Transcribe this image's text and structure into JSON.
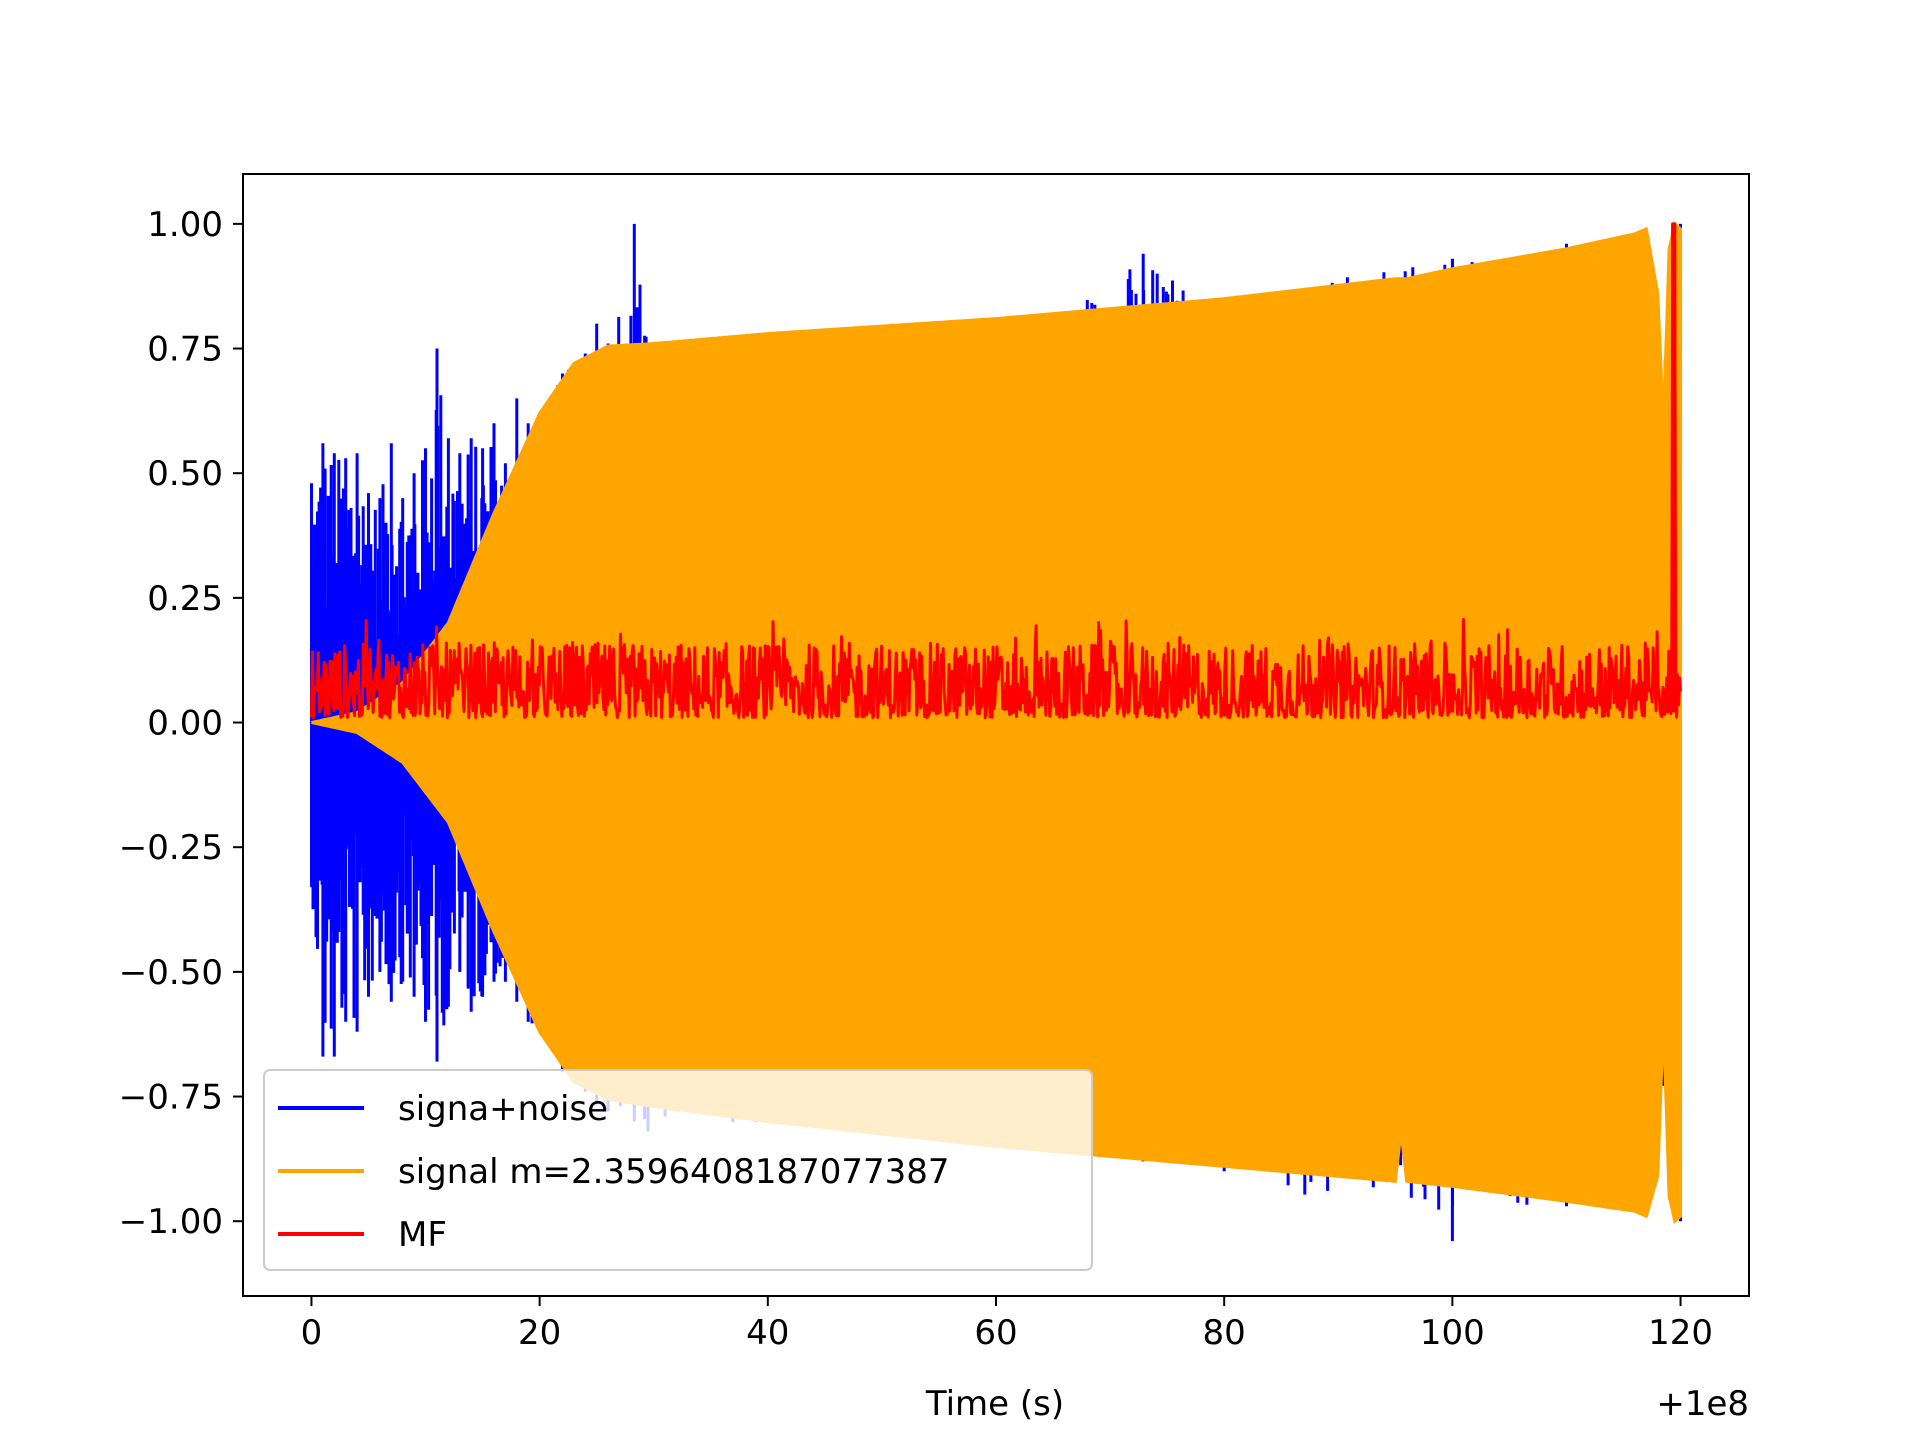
{
  "chart_data": {
    "type": "line",
    "title": "",
    "xlabel": "Time (s)",
    "ylabel": "",
    "x_offset_label": "+1e8",
    "xlim": [
      -6,
      126
    ],
    "ylim": [
      -1.15,
      1.1
    ],
    "xticks": [
      0,
      20,
      40,
      60,
      80,
      100,
      120
    ],
    "xtick_labels": [
      "0",
      "20",
      "40",
      "60",
      "80",
      "100",
      "120"
    ],
    "yticks": [
      1.0,
      0.75,
      0.5,
      0.25,
      0.0,
      -0.25,
      -0.5,
      -0.75,
      -1.0
    ],
    "ytick_labels": [
      "1.00",
      "0.75",
      "0.50",
      "0.25",
      "0.00",
      "−0.25",
      "−0.50",
      "−0.75",
      "−1.00"
    ],
    "grid": false,
    "legend_position": "lower-left",
    "series": [
      {
        "name": "signa+noise",
        "color": "#0000ff",
        "envelope": {
          "x": [
            0,
            1,
            2,
            3,
            4,
            5,
            6,
            7,
            8,
            9,
            10,
            11,
            12,
            13,
            14,
            15,
            16,
            17,
            18,
            19,
            20,
            22,
            24,
            25,
            26,
            28.3,
            29.5,
            31,
            60,
            72.9,
            80,
            100,
            100.01,
            110,
            120
          ],
          "upper": [
            0.48,
            0.56,
            0.54,
            0.53,
            0.54,
            0.46,
            0.45,
            0.56,
            0.45,
            0.5,
            0.55,
            0.75,
            0.57,
            0.54,
            0.57,
            0.55,
            0.6,
            0.52,
            0.65,
            0.6,
            0.62,
            0.7,
            0.74,
            0.8,
            0.76,
            1.0,
            0.76,
            0.76,
            0.8,
            0.94,
            0.85,
            0.93,
            0.93,
            0.96,
            1.0
          ],
          "lower": [
            -0.33,
            -0.67,
            -0.67,
            -0.6,
            -0.62,
            -0.55,
            -0.5,
            -0.56,
            -0.52,
            -0.55,
            -0.6,
            -0.68,
            -0.57,
            -0.5,
            -0.58,
            -0.55,
            -0.52,
            -0.52,
            -0.56,
            -0.6,
            -0.62,
            -0.7,
            -0.74,
            -0.76,
            -0.78,
            -0.8,
            -0.82,
            -0.79,
            -0.85,
            -0.88,
            -0.9,
            -1.04,
            -0.97,
            -0.97,
            -1.0
          ]
        }
      },
      {
        "name": "signal m=2.3596408187077387",
        "color": "#ffa500",
        "envelope": {
          "x": [
            0,
            4,
            8,
            12,
            16,
            20,
            23,
            26,
            30,
            40,
            60,
            80,
            95,
            95.5,
            96,
            100,
            110,
            116,
            117,
            118,
            118.5,
            119,
            119.5,
            120
          ],
          "upper": [
            0.0,
            0.02,
            0.08,
            0.2,
            0.42,
            0.62,
            0.72,
            0.755,
            0.76,
            0.78,
            0.81,
            0.85,
            0.89,
            0.89,
            0.89,
            0.91,
            0.95,
            0.98,
            0.99,
            0.86,
            0.6,
            0.95,
            1.0,
            0.99
          ],
          "lower": [
            0.0,
            -0.02,
            -0.08,
            -0.2,
            -0.42,
            -0.62,
            -0.72,
            -0.755,
            -0.77,
            -0.8,
            -0.85,
            -0.89,
            -0.92,
            -0.82,
            -0.92,
            -0.93,
            -0.96,
            -0.98,
            -0.99,
            -0.91,
            -0.6,
            -0.95,
            -1.0,
            -0.99
          ]
        }
      },
      {
        "name": "MF",
        "color": "#ff0000",
        "peak": {
          "x": 119.4,
          "y": 1.0
        },
        "baseline_range": [
          0.01,
          0.16
        ],
        "x_range": [
          0,
          120
        ]
      }
    ]
  }
}
